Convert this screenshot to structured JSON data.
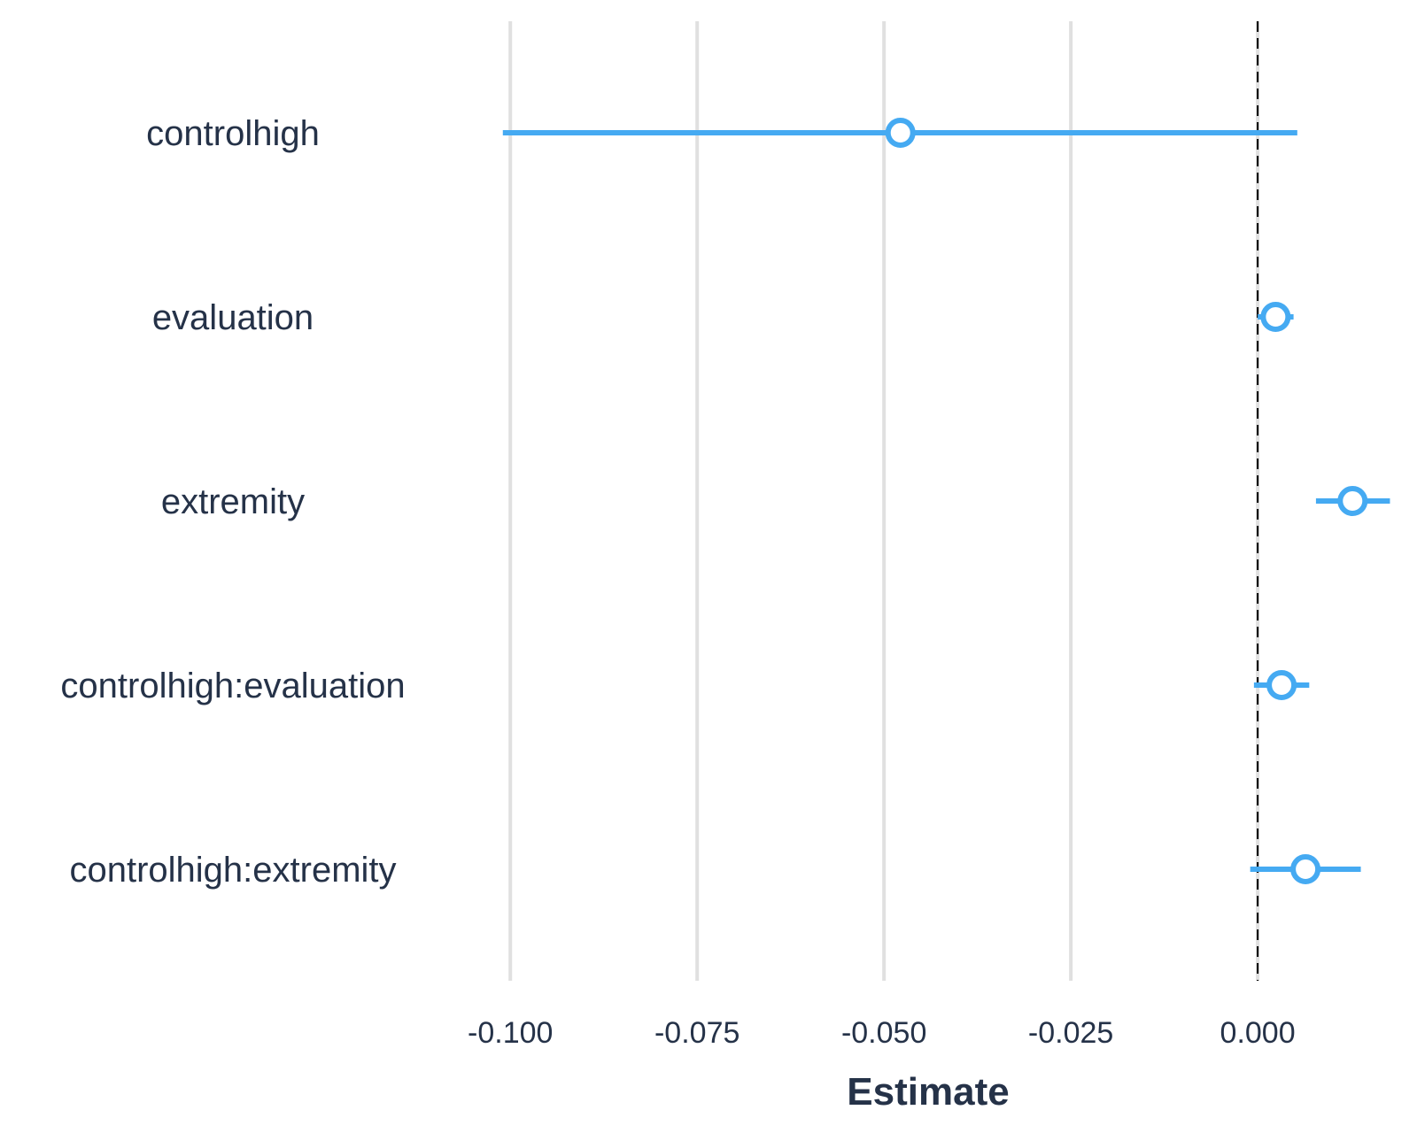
{
  "chart_data": {
    "type": "scatter",
    "subtype": "coefficient-plot",
    "xlabel": "Estimate",
    "xlim": [
      -0.1005,
      0.018
    ],
    "x_ticks": [
      -0.1,
      -0.075,
      -0.05,
      -0.025,
      0.0
    ],
    "x_tick_labels": [
      "-0.100",
      "-0.075",
      "-0.050",
      "-0.025",
      "0.000"
    ],
    "reference_line": 0.0,
    "grid": "vertical",
    "point_color": "#45aaf2",
    "terms": [
      {
        "label": "controlhigh",
        "estimate": -0.0478,
        "lower": -0.101,
        "upper": 0.0053
      },
      {
        "label": "evaluation",
        "estimate": 0.0024,
        "lower": 0.0,
        "upper": 0.0048
      },
      {
        "label": "extremity",
        "estimate": 0.0127,
        "lower": 0.0078,
        "upper": 0.0177
      },
      {
        "label": "controlhigh:evaluation",
        "estimate": 0.0032,
        "lower": -0.0005,
        "upper": 0.0069
      },
      {
        "label": "controlhigh:extremity",
        "estimate": 0.0064,
        "lower": -0.001,
        "upper": 0.0138
      }
    ]
  }
}
